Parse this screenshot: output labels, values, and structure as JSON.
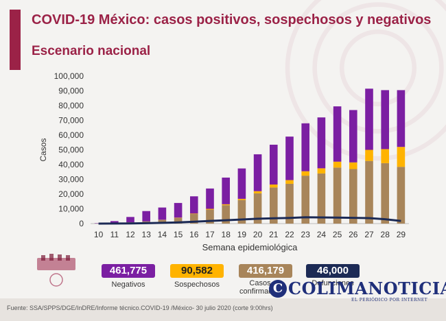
{
  "header": {
    "title": "COVID-19 México: casos positivos, sospechosos y negativos",
    "subtitle": "Escenario nacional"
  },
  "colors": {
    "accent": "#9b2247",
    "negativos": "#7b1fa2",
    "sospechosos": "#ffb300",
    "confirmados": "#a8855a",
    "defunciones": "#1c2a55"
  },
  "chart_data": {
    "type": "bar",
    "stacked": true,
    "xlabel": "Semana epidemiológica",
    "ylabel": "Casos",
    "ylim": [
      0,
      100000
    ],
    "yticks": [
      0,
      10000,
      20000,
      30000,
      40000,
      50000,
      60000,
      70000,
      80000,
      90000,
      100000
    ],
    "ytick_labels": [
      "0",
      "10,000",
      "20,000",
      "30,000",
      "40,000",
      "50,000",
      "60,000",
      "70,000",
      "80,000",
      "90,000",
      "100,000"
    ],
    "categories": [
      "10",
      "11",
      "12",
      "13",
      "14",
      "15",
      "16",
      "17",
      "18",
      "19",
      "20",
      "21",
      "22",
      "23",
      "24",
      "25",
      "26",
      "27",
      "28",
      "29"
    ],
    "series": [
      {
        "name": "Casos confirmados",
        "kind": "bar",
        "values": [
          100,
          300,
          900,
          1500,
          2500,
          3800,
          6500,
          9500,
          12500,
          16000,
          20500,
          24500,
          27000,
          32500,
          34000,
          38000,
          37000,
          42500,
          41000,
          38500
        ]
      },
      {
        "name": "Sospechosos",
        "kind": "bar",
        "values": [
          0,
          0,
          0,
          0,
          100,
          200,
          300,
          500,
          600,
          800,
          1500,
          2000,
          2500,
          3000,
          3500,
          4000,
          4500,
          7500,
          9500,
          13500
        ]
      },
      {
        "name": "Negativos",
        "kind": "bar",
        "values": [
          200,
          1400,
          3600,
          7000,
          8300,
          10000,
          11700,
          13800,
          18100,
          20600,
          25000,
          27000,
          29500,
          32500,
          34500,
          37500,
          35500,
          41500,
          40000,
          38500
        ]
      },
      {
        "name": "Defunciones",
        "kind": "line",
        "values": [
          0,
          50,
          150,
          300,
          500,
          800,
          1300,
          1800,
          2300,
          2800,
          3300,
          3600,
          3800,
          4300,
          4200,
          4100,
          3900,
          3700,
          3000,
          1800
        ]
      }
    ],
    "legend": [
      {
        "total": "461,775",
        "label": "Negativos"
      },
      {
        "total": "90,582",
        "label": "Sospechosos"
      },
      {
        "total": "416,179",
        "label": "Casos confirmados"
      },
      {
        "total": "46,000",
        "label": "Defunciones"
      }
    ]
  },
  "footer": {
    "source": "Fuente: SSA/SPPS/DGE/InDRE/Informe técnico.COVID-19 /México- 30 julio 2020 (corte 9:00hrs)"
  },
  "watermark": {
    "name": "COLIMANOTICIAS",
    "initial": "C",
    "tagline": "EL PERIÓDICO POR INTERNET"
  }
}
